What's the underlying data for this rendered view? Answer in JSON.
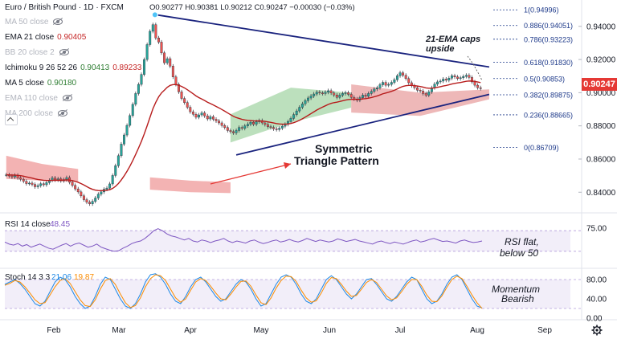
{
  "header": {
    "symbol": "Euro / British Pound · 1D · FXCM",
    "ohlc": "O0.90277 H0.90381 L0.90212 C0.90247 −0.00030 (−0.03%)"
  },
  "legend": [
    {
      "name": "MA 50 close",
      "value": "",
      "eye": true,
      "dim": true
    },
    {
      "name": "EMA 21 close",
      "value": "0.90405",
      "color": "#c62828",
      "dim": false
    },
    {
      "name": "BB 20 close 2",
      "value": "",
      "eye": true,
      "dim": true
    },
    {
      "name": "Ichimoku 9 26 52 26",
      "value": "0.90413",
      "value2": "0.89233",
      "color": "#2e7d32",
      "color2": "#c62828",
      "dim": false
    },
    {
      "name": "MA 5 close",
      "value": "0.90180",
      "color": "#2e7d32",
      "dim": false
    },
    {
      "name": "EMA 110 close",
      "value": "",
      "eye": true,
      "dim": true
    },
    {
      "name": "MA 200 close",
      "value": "",
      "eye": true,
      "dim": true
    }
  ],
  "price_tag": "0.90247",
  "colors": {
    "up": "#26a69a",
    "down": "#ef5350",
    "ema": "#b71c1c",
    "trend": "#1a237e",
    "fib": "#1e3a8a",
    "kumo_green": "#a5d6a7",
    "kumo_red": "#ef9a9a",
    "rsi": "#7e57c2",
    "stoch_k": "#1e88e5",
    "stoch_d": "#fb8c00",
    "arrow": "#e53935"
  },
  "chart_data": [
    {
      "type": "candlestick",
      "title": "Euro / British Pound · 1D · FXCM",
      "x_tick_labels": [
        "Feb",
        "Mar",
        "Apr",
        "May",
        "Jun",
        "Jul",
        "Aug",
        "Sep"
      ],
      "y_tick_labels": [
        "0.94000",
        "0.92000",
        "0.90000",
        "0.88000",
        "0.86000",
        "0.84000"
      ],
      "ylim": [
        0.829,
        0.952
      ],
      "close_series": [
        0.8505,
        0.8498,
        0.8492,
        0.8502,
        0.8487,
        0.8478,
        0.8466,
        0.8452,
        0.8455,
        0.8447,
        0.8433,
        0.844,
        0.8451,
        0.8445,
        0.8458,
        0.8472,
        0.8486,
        0.8474,
        0.8481,
        0.8469,
        0.8476,
        0.8488,
        0.846,
        0.8441,
        0.842,
        0.8402,
        0.8378,
        0.8355,
        0.834,
        0.833,
        0.8345,
        0.8365,
        0.8388,
        0.8402,
        0.8418,
        0.8425,
        0.845,
        0.8501,
        0.856,
        0.862,
        0.869,
        0.8745,
        0.8803,
        0.8862,
        0.893,
        0.8995,
        0.905,
        0.911,
        0.92,
        0.929,
        0.937,
        0.941,
        0.933,
        0.9305,
        0.924,
        0.918,
        0.9205,
        0.916,
        0.9095,
        0.905,
        0.9005,
        0.8965,
        0.894,
        0.8912,
        0.8885,
        0.887,
        0.8852,
        0.8866,
        0.8878,
        0.886,
        0.8842,
        0.8855,
        0.884,
        0.883,
        0.8818,
        0.8802,
        0.879,
        0.8772,
        0.8765,
        0.8758,
        0.8772,
        0.879,
        0.8785,
        0.88,
        0.881,
        0.8822,
        0.881,
        0.8825,
        0.8832,
        0.8818,
        0.8808,
        0.8795,
        0.879,
        0.8782,
        0.8778,
        0.8786,
        0.8798,
        0.8809,
        0.8826,
        0.8845,
        0.8868,
        0.889,
        0.8912,
        0.8933,
        0.8952,
        0.8968,
        0.898,
        0.8992,
        0.9003,
        0.8998,
        0.8995,
        0.9003,
        0.9012,
        0.8998,
        0.8986,
        0.8972,
        0.8985,
        0.8995,
        0.9,
        0.899,
        0.8972,
        0.8962,
        0.8955,
        0.897,
        0.8985,
        0.8978,
        0.8995,
        0.9008,
        0.9022,
        0.903,
        0.9048,
        0.9062,
        0.9045,
        0.905,
        0.9062,
        0.9078,
        0.9102,
        0.912,
        0.9105,
        0.9085,
        0.906,
        0.9042,
        0.903,
        0.9015,
        0.901,
        0.8995,
        0.8985,
        0.9005,
        0.903,
        0.9052,
        0.9065,
        0.907,
        0.9082,
        0.9075,
        0.9088,
        0.9102,
        0.9095,
        0.9085,
        0.909,
        0.9098,
        0.9105,
        0.9092,
        0.9065,
        0.9045,
        0.903,
        0.9025
      ],
      "kumo": [
        {
          "from_bar": 0,
          "to_bar": 25,
          "upper": [
            0.862,
            0.857,
            0.854
          ],
          "lower": [
            0.848,
            0.847,
            0.846
          ],
          "color": "red"
        },
        {
          "from_bar": 50,
          "to_bar": 78,
          "upper": [
            0.849,
            0.847,
            0.846
          ],
          "lower": [
            0.8415,
            0.84,
            0.8395
          ],
          "color": "red"
        },
        {
          "from_bar": 78,
          "to_bar": 120,
          "upper": [
            0.887,
            0.903,
            0.9
          ],
          "lower": [
            0.87,
            0.882,
            0.891
          ],
          "color": "green"
        },
        {
          "from_bar": 120,
          "to_bar": 168,
          "upper": [
            0.905,
            0.9,
            0.902
          ],
          "lower": [
            0.888,
            0.886,
            0.896
          ],
          "color": "mixed"
        }
      ],
      "trendlines": [
        {
          "name": "triangle-upper",
          "from": [
            "bar 52",
            0.947
          ],
          "to": [
            "bar 168",
            0.9155
          ]
        },
        {
          "name": "triangle-lower",
          "from": [
            "bar 80",
            0.8625
          ],
          "to": [
            "bar 168",
            0.899
          ]
        }
      ],
      "fibonacci": [
        {
          "level": "1(0.94996)",
          "price": 0.94996
        },
        {
          "level": "0.886(0.94051)",
          "price": 0.94051
        },
        {
          "level": "0.786(0.93223)",
          "price": 0.93223
        },
        {
          "level": "0.618(0.91830)",
          "price": 0.9183
        },
        {
          "level": "0.5(0.90853)",
          "price": 0.90853
        },
        {
          "level": "0.382(0.89875)",
          "price": 0.89875
        },
        {
          "level": "0.236(0.88665)",
          "price": 0.88665
        },
        {
          "level": "0(0.86709)",
          "price": 0.86709
        }
      ],
      "annotations": [
        "Symmetric",
        "Triangle Pattern",
        "21-EMA caps",
        "upside"
      ]
    },
    {
      "type": "line",
      "title": "RSI 14 close",
      "value_label": "48.45",
      "y_tick_labels": [
        "75.00"
      ],
      "ylim": [
        0,
        100
      ],
      "bands": [
        30,
        70
      ],
      "values": [
        48,
        44,
        42,
        45,
        40,
        43,
        38,
        41,
        44,
        40,
        36,
        34,
        38,
        42,
        45,
        40,
        44,
        46,
        42,
        38,
        40,
        44,
        38,
        35,
        32,
        30,
        31,
        36,
        40,
        45,
        48,
        50,
        55,
        62,
        70,
        74,
        70,
        64,
        60,
        58,
        55,
        52,
        55,
        50,
        48,
        52,
        50,
        47,
        50,
        52,
        55,
        50,
        47,
        50,
        48,
        46,
        50,
        52,
        48,
        45,
        47,
        50,
        52,
        48,
        50,
        53,
        50,
        48,
        51,
        55,
        52,
        49,
        52,
        50,
        48,
        50,
        54,
        52,
        49,
        51,
        53,
        50,
        48,
        46,
        44,
        48,
        50,
        47,
        45,
        48,
        46,
        44,
        47,
        50,
        52,
        48,
        50,
        53,
        55,
        52,
        49,
        50,
        48,
        46,
        50,
        52,
        49,
        47,
        48,
        50
      ],
      "annotations": [
        "RSI flat,",
        "below 50"
      ]
    },
    {
      "type": "line",
      "title": "Stoch 14 3 3",
      "value_labels": [
        "21.06",
        "19.87"
      ],
      "y_tick_labels": [
        "80.00",
        "40.00",
        "0.00"
      ],
      "ylim": [
        0,
        100
      ],
      "series": [
        {
          "values": [
            70,
            75,
            80,
            72,
            60,
            45,
            30,
            25,
            35,
            55,
            75,
            85,
            80,
            65,
            45,
            30,
            20,
            25,
            45,
            70,
            85,
            80,
            60,
            40,
            25,
            20,
            30,
            50,
            75,
            90,
            92,
            85,
            70,
            50,
            35,
            30,
            45,
            65,
            80,
            85,
            75,
            60,
            45,
            35,
            40,
            55,
            70,
            80,
            75,
            60,
            40,
            25,
            30,
            50,
            70,
            85,
            90,
            85,
            70,
            50,
            35,
            30,
            40,
            60,
            80,
            88,
            80,
            65,
            50,
            40,
            50,
            65,
            80,
            82,
            70,
            55,
            40,
            35,
            45,
            60,
            75,
            85,
            80,
            60,
            40,
            30,
            35,
            50,
            70,
            85,
            90,
            80,
            60,
            40,
            25,
            21
          ]
        },
        {
          "values": [
            68,
            72,
            78,
            75,
            65,
            52,
            38,
            30,
            32,
            48,
            65,
            78,
            82,
            72,
            55,
            38,
            26,
            24,
            38,
            60,
            78,
            82,
            70,
            50,
            32,
            22,
            26,
            42,
            65,
            82,
            90,
            88,
            78,
            60,
            42,
            33,
            40,
            58,
            75,
            82,
            78,
            66,
            52,
            40,
            38,
            50,
            64,
            76,
            77,
            66,
            48,
            32,
            28,
            42,
            62,
            78,
            87,
            86,
            76,
            58,
            42,
            33,
            36,
            52,
            72,
            84,
            82,
            70,
            56,
            45,
            47,
            60,
            74,
            80,
            74,
            60,
            46,
            38,
            42,
            55,
            70,
            80,
            80,
            66,
            48,
            35,
            34,
            46,
            64,
            80,
            87,
            82,
            66,
            48,
            32,
            20
          ]
        }
      ],
      "bands": [
        20,
        80
      ],
      "annotations": [
        "Momentum",
        "Bearish"
      ]
    }
  ]
}
